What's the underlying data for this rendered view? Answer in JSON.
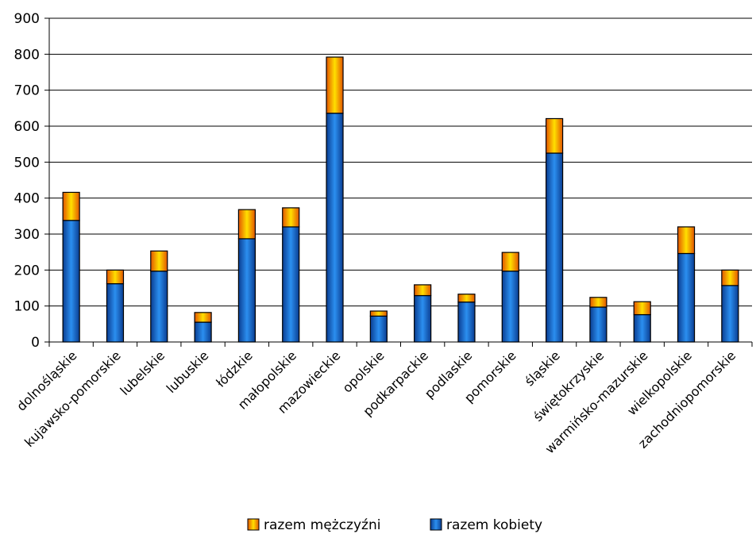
{
  "chart_data": {
    "type": "bar",
    "stacked": true,
    "categories": [
      "dolnośląskie",
      "kujawsko-pomorskie",
      "lubelskie",
      "lubuskie",
      "łódzkie",
      "małopolskie",
      "mazowieckie",
      "opolskie",
      "podkarpackie",
      "podlaskie",
      "pomorskie",
      "śląskie",
      "świętokrzyskie",
      "warmińsko-mazurskie",
      "wielkopolskie",
      "zachodniopomorskie"
    ],
    "series": [
      {
        "name": "razem kobiety",
        "values": [
          338,
          162,
          197,
          55,
          287,
          320,
          636,
          72,
          129,
          111,
          197,
          525,
          97,
          76,
          246,
          157
        ]
      },
      {
        "name": "razem mężczyźni",
        "values": [
          78,
          38,
          56,
          27,
          81,
          53,
          156,
          14,
          30,
          22,
          52,
          96,
          27,
          36,
          74,
          43
        ]
      }
    ],
    "ylim": [
      0,
      900
    ],
    "yticks": [
      "0",
      "100",
      "200",
      "300",
      "400",
      "500",
      "600",
      "700",
      "800",
      "900"
    ],
    "grid": true,
    "legend_position": "bottom",
    "colors": {
      "razem kobiety": "#1a6fd0",
      "razem mężczyźni": "#ffa800",
      "grid": "#000000",
      "bar_outline": "#000000"
    }
  }
}
